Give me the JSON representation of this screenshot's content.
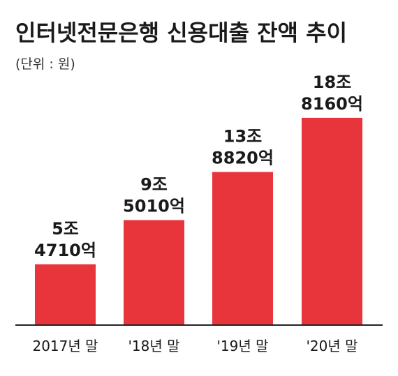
{
  "chart_data": {
    "type": "bar",
    "title": "인터넷전문은행 신용대출 잔액 추이",
    "subtitle": "(단위 : 원)",
    "categories": [
      "2017년 말",
      "'18년 말",
      "'19년 말",
      "'20년 말"
    ],
    "values": [
      54710,
      95010,
      138820,
      188160
    ],
    "value_unit": "억원",
    "data_labels": [
      [
        "5조",
        "4710억"
      ],
      [
        "9조",
        "5010억"
      ],
      [
        "13조",
        "8820억"
      ],
      [
        "18조",
        "8160억"
      ]
    ],
    "bar_color": "#e8353b",
    "xlabel": "",
    "ylabel": "",
    "ylim": [
      0,
      197000
    ],
    "grid": false,
    "legend": "none"
  }
}
